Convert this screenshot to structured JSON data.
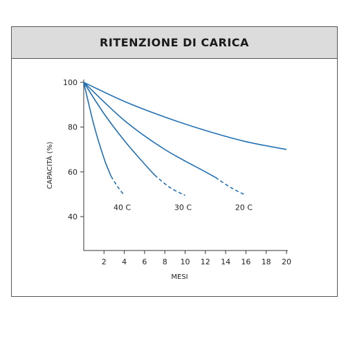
{
  "chart_data": {
    "type": "line",
    "title": "RITENZIONE DI CARICA",
    "xlabel": "MESI",
    "ylabel": "CAPACITÀ (%)",
    "xlim": [
      0,
      20
    ],
    "ylim": [
      25,
      100
    ],
    "x_ticks": [
      2,
      4,
      6,
      8,
      10,
      12,
      14,
      16,
      18,
      20
    ],
    "y_ticks": [
      40,
      60,
      80,
      100
    ],
    "grid": false,
    "legend": "none",
    "line_color": "#1f6fb5",
    "series": [
      {
        "name": "40 C",
        "solid": [
          [
            0,
            100
          ],
          [
            1,
            81
          ],
          [
            2,
            66
          ],
          [
            2.7,
            58
          ]
        ],
        "dashed": [
          [
            2.7,
            58
          ],
          [
            3.4,
            53
          ],
          [
            4,
            49.5
          ]
        ]
      },
      {
        "name": "30 C",
        "solid": [
          [
            0,
            100
          ],
          [
            2,
            86
          ],
          [
            4,
            74
          ],
          [
            6,
            63.5
          ],
          [
            7,
            58.5
          ]
        ],
        "dashed": [
          [
            7,
            58.5
          ],
          [
            8.5,
            53
          ],
          [
            10,
            49.5
          ]
        ]
      },
      {
        "name": "20 C",
        "solid": [
          [
            0,
            100
          ],
          [
            4,
            83
          ],
          [
            8,
            70
          ],
          [
            12,
            60
          ],
          [
            13,
            57.5
          ]
        ],
        "dashed": [
          [
            13,
            57.5
          ],
          [
            14.5,
            53
          ],
          [
            16,
            49.5
          ]
        ]
      },
      {
        "name": "",
        "solid": [
          [
            0,
            100
          ],
          [
            4,
            91.5
          ],
          [
            8,
            84.5
          ],
          [
            12,
            78.5
          ],
          [
            16,
            73.5
          ],
          [
            20,
            70
          ]
        ],
        "dashed": []
      }
    ]
  }
}
